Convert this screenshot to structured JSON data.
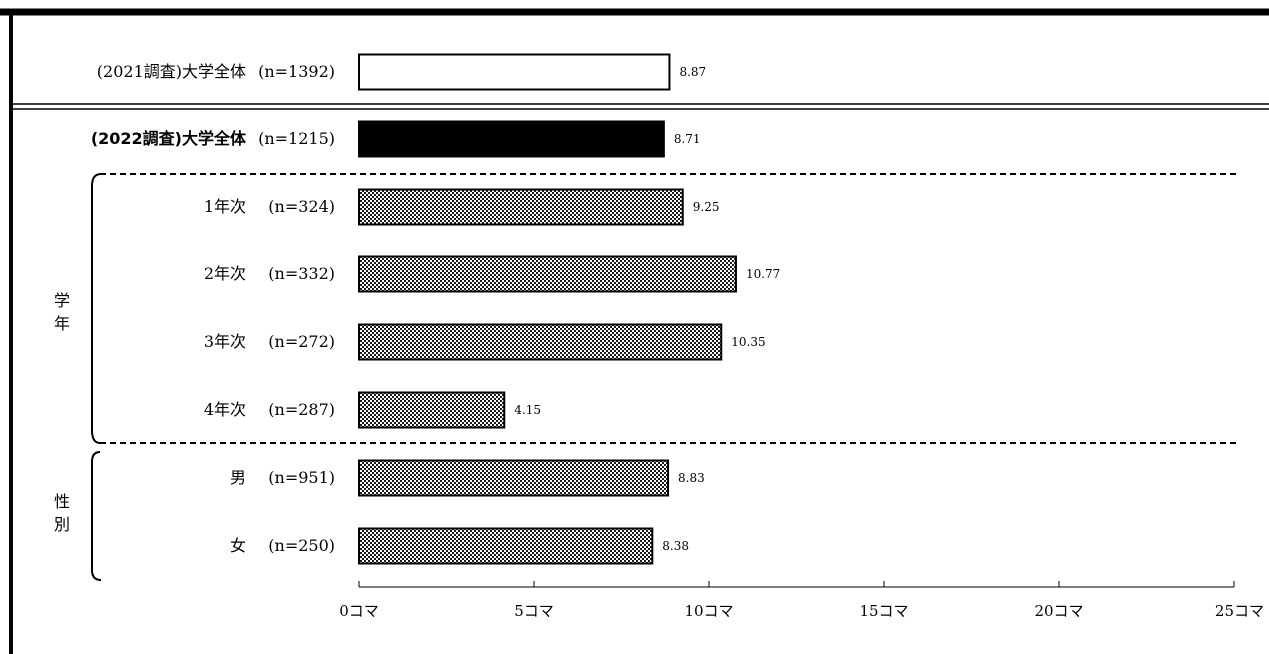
{
  "chart_data": {
    "type": "bar",
    "orientation": "horizontal",
    "categories": [
      {
        "label": "(2021調査)大学全体",
        "n": "(n=1392)",
        "value": 8.87,
        "value_label": "8.87",
        "style": "white",
        "bold": false
      },
      {
        "label": "(2022調査)大学全体",
        "n": "(n=1215)",
        "value": 8.71,
        "value_label": "8.71",
        "style": "black",
        "bold": true
      },
      {
        "label": "1年次",
        "n": "(n=324)",
        "value": 9.25,
        "value_label": "9.25",
        "style": "pattern",
        "bold": false
      },
      {
        "label": "2年次",
        "n": "(n=332)",
        "value": 10.77,
        "value_label": "10.77",
        "style": "pattern",
        "bold": false
      },
      {
        "label": "3年次",
        "n": "(n=272)",
        "value": 10.35,
        "value_label": "10.35",
        "style": "pattern",
        "bold": false
      },
      {
        "label": "4年次",
        "n": "(n=287)",
        "value": 4.15,
        "value_label": "4.15",
        "style": "pattern",
        "bold": false
      },
      {
        "label": "男",
        "n": "(n=951)",
        "value": 8.83,
        "value_label": "8.83",
        "style": "pattern",
        "bold": false
      },
      {
        "label": "女",
        "n": "(n=250)",
        "value": 8.38,
        "value_label": "8.38",
        "style": "pattern",
        "bold": false
      }
    ],
    "groups": [
      {
        "label": "学年",
        "members": [
          "1年次",
          "2年次",
          "3年次",
          "4年次"
        ]
      },
      {
        "label": "性別",
        "members": [
          "男",
          "女"
        ]
      }
    ],
    "xlim": [
      0,
      25
    ],
    "xticks": [
      0,
      5,
      10,
      15,
      20,
      25
    ],
    "xtick_labels": [
      "0コマ",
      "5コマ",
      "10コマ",
      "15コマ",
      "20コマ",
      "25コマ"
    ],
    "title": "",
    "xlabel": "",
    "ylabel": "",
    "grid": false,
    "legend": "none",
    "colors": {
      "white": "#ffffff",
      "black": "#000000",
      "pattern_dark": "#1a1a1a",
      "pattern_light": "#ffffff",
      "border": "#000000"
    }
  }
}
